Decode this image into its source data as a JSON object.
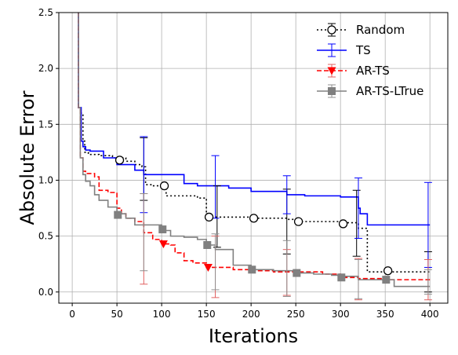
{
  "chart_data": {
    "type": "line",
    "title": "",
    "xlabel": "Iterations",
    "ylabel": "Absolute Error",
    "xlim": [
      -15,
      420
    ],
    "ylim": [
      -0.1,
      2.5
    ],
    "x_ticks": [
      0,
      50,
      100,
      150,
      200,
      250,
      300,
      350,
      400
    ],
    "y_ticks": [
      0.0,
      0.5,
      1.0,
      1.5,
      2.0,
      2.5
    ],
    "x_tick_labels": [
      "0",
      "50",
      "100",
      "150",
      "200",
      "250",
      "300",
      "350",
      "400"
    ],
    "y_tick_labels": [
      "0.0",
      "0.5",
      "1.0",
      "1.5",
      "2.0",
      "2.5"
    ],
    "grid": true,
    "legend": "top-right",
    "series": [
      {
        "name": "Random",
        "color": "#000000",
        "dash": "dotted",
        "marker": "circle-open",
        "x": [
          5,
          7,
          9,
          12,
          14,
          18,
          30,
          45,
          60,
          70,
          78,
          82,
          90,
          100,
          105,
          120,
          140,
          150,
          155,
          175,
          200,
          215,
          240,
          250,
          270,
          300,
          310,
          318,
          320,
          330,
          350,
          400
        ],
        "y": [
          3.5,
          1.65,
          1.6,
          1.35,
          1.25,
          1.23,
          1.22,
          1.2,
          1.17,
          1.14,
          1.12,
          0.96,
          0.95,
          0.94,
          0.86,
          0.86,
          0.84,
          0.7,
          0.67,
          0.67,
          0.66,
          0.66,
          0.65,
          0.63,
          0.63,
          0.62,
          0.62,
          0.62,
          0.57,
          0.18,
          0.18,
          0.18
        ],
        "markers_x": [
          53,
          103,
          153,
          203,
          253,
          303,
          353
        ],
        "markers_y": [
          1.18,
          0.95,
          0.67,
          0.66,
          0.63,
          0.61,
          0.19
        ],
        "errorbars": [
          {
            "x": 80,
            "y": 1.1,
            "low": 0.82,
            "high": 1.38
          },
          {
            "x": 162,
            "y": 0.67,
            "low": 0.4,
            "high": 0.95
          },
          {
            "x": 240,
            "y": 0.63,
            "low": 0.34,
            "high": 0.92
          },
          {
            "x": 318,
            "y": 0.62,
            "low": 0.32,
            "high": 0.91
          },
          {
            "x": 398,
            "y": 0.18,
            "low": 0.0,
            "high": 0.36
          }
        ]
      },
      {
        "name": "TS",
        "color": "#0000ff",
        "dash": "solid",
        "marker": "none",
        "x": [
          5,
          7,
          10,
          12,
          15,
          20,
          35,
          50,
          70,
          80,
          100,
          125,
          140,
          150,
          175,
          200,
          215,
          240,
          260,
          300,
          320,
          322,
          330,
          400
        ],
        "y": [
          3.5,
          1.65,
          1.35,
          1.3,
          1.27,
          1.26,
          1.2,
          1.14,
          1.09,
          1.05,
          1.05,
          0.97,
          0.95,
          0.95,
          0.93,
          0.9,
          0.9,
          0.87,
          0.86,
          0.85,
          0.75,
          0.7,
          0.6,
          0.6
        ],
        "errorbars": [
          {
            "x": 80,
            "y": 1.05,
            "low": 0.71,
            "high": 1.39
          },
          {
            "x": 160,
            "y": 0.94,
            "low": 0.66,
            "high": 1.22
          },
          {
            "x": 240,
            "y": 0.87,
            "low": 0.7,
            "high": 1.04
          },
          {
            "x": 320,
            "y": 0.75,
            "low": 0.48,
            "high": 1.02
          },
          {
            "x": 398,
            "y": 0.6,
            "low": 0.22,
            "high": 0.98
          }
        ]
      },
      {
        "name": "AR-TS",
        "color": "#ff0000",
        "dash": "dashed",
        "marker": "triangle-down",
        "x": [
          5,
          7,
          9,
          12,
          15,
          25,
          30,
          40,
          50,
          55,
          60,
          70,
          80,
          90,
          100,
          110,
          115,
          125,
          135,
          150,
          160,
          180,
          200,
          225,
          250,
          280,
          300,
          320,
          350,
          400
        ],
        "y": [
          3.5,
          1.65,
          1.2,
          1.08,
          1.06,
          1.03,
          0.91,
          0.89,
          0.75,
          0.7,
          0.66,
          0.63,
          0.53,
          0.47,
          0.43,
          0.42,
          0.35,
          0.28,
          0.26,
          0.22,
          0.22,
          0.2,
          0.19,
          0.18,
          0.18,
          0.16,
          0.13,
          0.12,
          0.11,
          0.11
        ],
        "markers_x": [
          102,
          152
        ],
        "markers_y": [
          0.43,
          0.22
        ],
        "errorbars": [
          {
            "x": 80,
            "y": 0.47,
            "low": 0.07,
            "high": 0.88
          },
          {
            "x": 160,
            "y": 0.22,
            "low": -0.05,
            "high": 0.5
          },
          {
            "x": 240,
            "y": 0.18,
            "low": -0.03,
            "high": 0.38
          },
          {
            "x": 320,
            "y": 0.12,
            "low": -0.07,
            "high": 0.3
          },
          {
            "x": 398,
            "y": 0.11,
            "low": -0.07,
            "high": 0.29
          }
        ]
      },
      {
        "name": "AR-TS-LTrue",
        "color": "#808080",
        "dash": "solid",
        "marker": "square",
        "x": [
          5,
          7,
          9,
          12,
          15,
          20,
          25,
          30,
          40,
          50,
          60,
          70,
          90,
          100,
          110,
          125,
          140,
          150,
          160,
          180,
          200,
          225,
          250,
          270,
          290,
          300,
          320,
          350,
          360,
          400
        ],
        "y": [
          3.5,
          1.65,
          1.2,
          1.05,
          0.99,
          0.95,
          0.87,
          0.82,
          0.76,
          0.7,
          0.66,
          0.6,
          0.6,
          0.55,
          0.5,
          0.49,
          0.47,
          0.42,
          0.38,
          0.24,
          0.2,
          0.19,
          0.17,
          0.16,
          0.15,
          0.14,
          0.11,
          0.11,
          0.05,
          0.05
        ],
        "markers_x": [
          51,
          101,
          151,
          201,
          251,
          301,
          351
        ],
        "markers_y": [
          0.69,
          0.56,
          0.42,
          0.2,
          0.17,
          0.13,
          0.11
        ],
        "errorbars": [
          {
            "x": 80,
            "y": 0.6,
            "low": 0.19,
            "high": 0.88
          },
          {
            "x": 160,
            "y": 0.3,
            "low": 0.02,
            "high": 0.52
          },
          {
            "x": 240,
            "y": 0.18,
            "low": -0.04,
            "high": 0.46
          },
          {
            "x": 320,
            "y": 0.11,
            "low": -0.06,
            "high": 0.29
          },
          {
            "x": 398,
            "y": 0.05,
            "low": -0.02,
            "high": 0.2
          }
        ]
      }
    ]
  }
}
